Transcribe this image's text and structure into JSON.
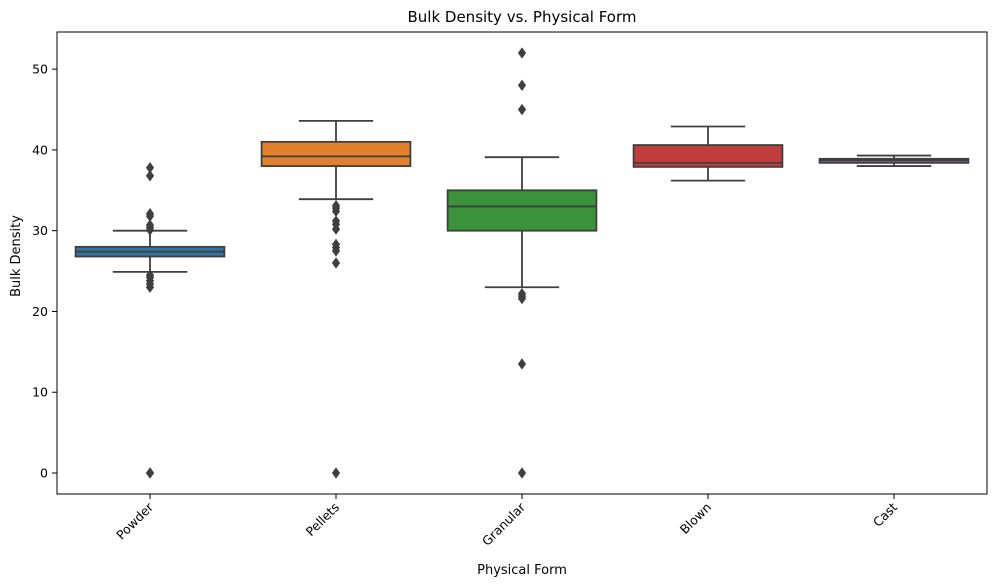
{
  "chart_data": {
    "type": "box",
    "title": "Bulk Density vs. Physical Form",
    "xlabel": "Physical Form",
    "ylabel": "Bulk Density",
    "ylim": [
      -2.6,
      54.6
    ],
    "yticks": [
      0,
      10,
      20,
      30,
      40,
      50
    ],
    "grid": false,
    "categories": [
      "Powder",
      "Pellets",
      "Granular",
      "Blown",
      "Cast"
    ],
    "boxes": [
      {
        "category": "Powder",
        "color": "#3274a1",
        "whisker_low": 24.9,
        "q1": 26.8,
        "median": 27.4,
        "q3": 28.0,
        "whisker_high": 30.0,
        "outliers": [
          0,
          0,
          23.0,
          23.4,
          23.8,
          24.2,
          24.5,
          30.1,
          30.4,
          30.7,
          31.8,
          32.1,
          36.8,
          37.8
        ]
      },
      {
        "category": "Pellets",
        "color": "#e1812c",
        "whisker_low": 33.9,
        "q1": 38.0,
        "median": 39.2,
        "q3": 41.0,
        "whisker_high": 43.6,
        "outliers": [
          0,
          26.0,
          27.5,
          27.9,
          28.3,
          30.2,
          30.8,
          31.2,
          32.4,
          32.8,
          33.1
        ]
      },
      {
        "category": "Granular",
        "color": "#3a923a",
        "whisker_low": 23.0,
        "q1": 30.0,
        "median": 33.0,
        "q3": 35.0,
        "whisker_high": 39.1,
        "outliers": [
          0,
          13.5,
          21.6,
          21.9,
          22.2,
          45.0,
          48.0,
          52.0
        ]
      },
      {
        "category": "Blown",
        "color": "#c03d3e",
        "whisker_low": 36.2,
        "q1": 37.9,
        "median": 38.4,
        "q3": 40.6,
        "whisker_high": 42.9,
        "outliers": []
      },
      {
        "category": "Cast",
        "color": "#9372b2",
        "whisker_low": 38.0,
        "q1": 38.4,
        "median": 38.7,
        "q3": 38.9,
        "whisker_high": 39.3,
        "outliers": []
      }
    ]
  }
}
